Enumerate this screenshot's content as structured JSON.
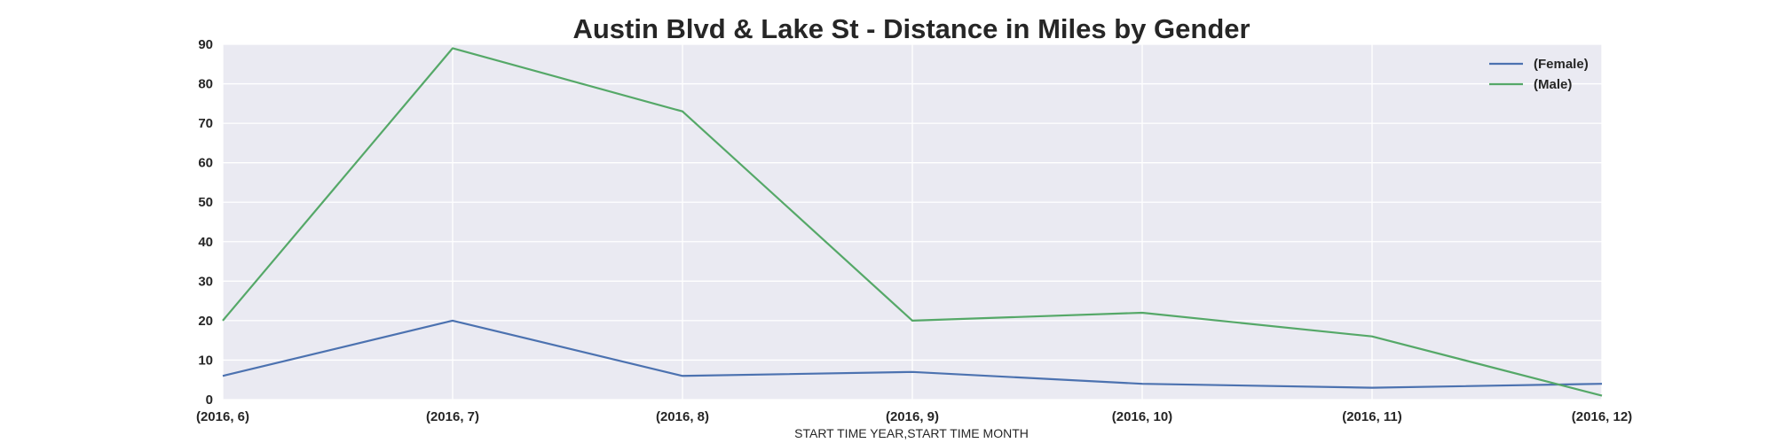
{
  "chart_data": {
    "type": "line",
    "title": "Austin Blvd & Lake St - Distance in Miles by Gender",
    "xlabel": "START TIME YEAR,START TIME MONTH",
    "ylabel": "",
    "categories": [
      "(2016, 6)",
      "(2016, 7)",
      "(2016, 8)",
      "(2016, 9)",
      "(2016, 10)",
      "(2016, 11)",
      "(2016, 12)"
    ],
    "ylim": [
      0,
      90
    ],
    "yticks": [
      "0",
      "10",
      "20",
      "30",
      "40",
      "50",
      "60",
      "70",
      "80",
      "90"
    ],
    "grid": true,
    "legend_position": "top-right",
    "background": "#EAEAF2",
    "series": [
      {
        "name": "(Female)",
        "color": "#4C72B0",
        "values": [
          6,
          20,
          6,
          7,
          4,
          3,
          4
        ]
      },
      {
        "name": "(Male)",
        "color": "#55A868",
        "values": [
          20,
          89,
          73,
          20,
          22,
          16,
          1
        ]
      }
    ]
  }
}
